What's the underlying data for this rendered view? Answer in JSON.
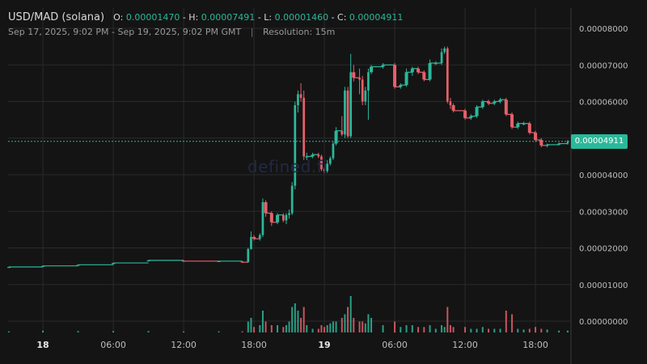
{
  "header": {
    "pair": "USD/MAD (solana)",
    "open_label": "O:",
    "open": "0.00001470",
    "high_label": "H:",
    "high": "0.00007491",
    "low_label": "L:",
    "low": "0.00001460",
    "close_label": "C:",
    "close": "0.00004911",
    "date_range": "Sep 17, 2025, 9:02 PM - Sep 19, 2025, 9:02 PM GMT",
    "separator": "|",
    "resolution": "Resolution: 15m"
  },
  "watermark": "defined.fi",
  "last_price_label": "0.00004911",
  "colors": {
    "up": "#2bb89a",
    "down": "#e5606b",
    "background": "#141414",
    "grid": "#2a2a2a"
  },
  "chart_data": {
    "type": "candlestick",
    "title": "USD/MAD (solana)",
    "yaxis": {
      "ticks": [
        8e-05,
        7e-05,
        6e-05,
        5e-05,
        4e-05,
        3e-05,
        2e-05,
        1e-05,
        0
      ],
      "tick_labels": [
        "0.00008000",
        "0.00007000",
        "0.00006000",
        "0.00005000",
        "0.00004000",
        "0.00003000",
        "0.00002000",
        "0.00001000",
        "0.00000000"
      ],
      "ylim": [
        0,
        8.5e-05
      ],
      "label_positions": "right"
    },
    "xaxis": {
      "xlim": [
        21.03,
        69.03
      ],
      "ticks": [
        24,
        30,
        36,
        42,
        48,
        54,
        60,
        66
      ],
      "tick_labels": [
        "18",
        "06:00",
        "12:00",
        "18:00",
        "19",
        "06:00",
        "12:00",
        "18:00"
      ],
      "bold_ticks": [
        "18",
        "19"
      ],
      "unit": "hours since Sep 17 00:00 GMT"
    },
    "grid": true,
    "last_price": 4.911e-05,
    "volume_scale_max": 10,
    "candles": [
      {
        "t": 21.1,
        "o": 1.47e-05,
        "h": 1.49e-05,
        "l": 1.46e-05,
        "c": 1.48e-05,
        "v": 0.3
      },
      {
        "t": 24.0,
        "o": 1.49e-05,
        "h": 1.51e-05,
        "l": 1.48e-05,
        "c": 1.51e-05,
        "v": 0.5
      },
      {
        "t": 27.0,
        "o": 1.52e-05,
        "h": 1.54e-05,
        "l": 1.51e-05,
        "c": 1.54e-05,
        "v": 0.4
      },
      {
        "t": 30.0,
        "o": 1.56e-05,
        "h": 1.59e-05,
        "l": 1.55e-05,
        "c": 1.59e-05,
        "v": 0.4
      },
      {
        "t": 33.0,
        "o": 1.64e-05,
        "h": 1.67e-05,
        "l": 1.63e-05,
        "c": 1.66e-05,
        "v": 0.4
      },
      {
        "t": 36.0,
        "o": 1.65e-05,
        "h": 1.66e-05,
        "l": 1.63e-05,
        "c": 1.64e-05,
        "v": 0.3
      },
      {
        "t": 39.0,
        "o": 1.63e-05,
        "h": 1.65e-05,
        "l": 1.62e-05,
        "c": 1.64e-05,
        "v": 0.3
      },
      {
        "t": 41.0,
        "o": 1.63e-05,
        "h": 1.64e-05,
        "l": 1.59e-05,
        "c": 1.61e-05,
        "v": 0.3
      },
      {
        "t": 41.5,
        "o": 1.61e-05,
        "h": 2e-05,
        "l": 1.6e-05,
        "c": 1.97e-05,
        "v": 3.0
      },
      {
        "t": 41.75,
        "o": 1.97e-05,
        "h": 2.45e-05,
        "l": 1.95e-05,
        "c": 2.3e-05,
        "v": 4.0
      },
      {
        "t": 42.0,
        "o": 2.3e-05,
        "h": 2.35e-05,
        "l": 2.2e-05,
        "c": 2.25e-05,
        "v": 1.5
      },
      {
        "t": 42.5,
        "o": 2.25e-05,
        "h": 2.4e-05,
        "l": 2.2e-05,
        "c": 2.35e-05,
        "v": 2.0
      },
      {
        "t": 42.75,
        "o": 2.35e-05,
        "h": 3.35e-05,
        "l": 2.3e-05,
        "c": 3.25e-05,
        "v": 6.0
      },
      {
        "t": 43.0,
        "o": 3.25e-05,
        "h": 3.3e-05,
        "l": 2.85e-05,
        "c": 2.95e-05,
        "v": 3.0
      },
      {
        "t": 43.5,
        "o": 2.95e-05,
        "h": 3e-05,
        "l": 2.6e-05,
        "c": 2.7e-05,
        "v": 2.0
      },
      {
        "t": 44.0,
        "o": 2.7e-05,
        "h": 2.95e-05,
        "l": 2.65e-05,
        "c": 2.9e-05,
        "v": 2.0
      },
      {
        "t": 44.5,
        "o": 2.9e-05,
        "h": 2.95e-05,
        "l": 2.7e-05,
        "c": 2.75e-05,
        "v": 1.5
      },
      {
        "t": 44.75,
        "o": 2.75e-05,
        "h": 2.95e-05,
        "l": 2.65e-05,
        "c": 2.9e-05,
        "v": 2.0
      },
      {
        "t": 45.0,
        "o": 2.9e-05,
        "h": 3.05e-05,
        "l": 2.8e-05,
        "c": 2.95e-05,
        "v": 3.0
      },
      {
        "t": 45.25,
        "o": 2.95e-05,
        "h": 3.8e-05,
        "l": 2.9e-05,
        "c": 3.7e-05,
        "v": 7.0
      },
      {
        "t": 45.5,
        "o": 3.7e-05,
        "h": 6e-05,
        "l": 3.6e-05,
        "c": 5.9e-05,
        "v": 8.0
      },
      {
        "t": 45.75,
        "o": 5.9e-05,
        "h": 6.3e-05,
        "l": 5.7e-05,
        "c": 6.2e-05,
        "v": 6.0
      },
      {
        "t": 46.0,
        "o": 6.2e-05,
        "h": 6.5e-05,
        "l": 6e-05,
        "c": 6.1e-05,
        "v": 4.0
      },
      {
        "t": 46.25,
        "o": 6.1e-05,
        "h": 6.3e-05,
        "l": 4.4e-05,
        "c": 4.5e-05,
        "v": 7.0
      },
      {
        "t": 46.5,
        "o": 4.5e-05,
        "h": 4.6e-05,
        "l": 4.4e-05,
        "c": 4.5e-05,
        "v": 2.0
      },
      {
        "t": 47.0,
        "o": 4.5e-05,
        "h": 4.6e-05,
        "l": 4.45e-05,
        "c": 4.55e-05,
        "v": 1.0
      },
      {
        "t": 47.5,
        "o": 4.55e-05,
        "h": 4.6e-05,
        "l": 4.45e-05,
        "c": 4.5e-05,
        "v": 1.0
      },
      {
        "t": 47.75,
        "o": 4.5e-05,
        "h": 4.55e-05,
        "l": 4.1e-05,
        "c": 4.15e-05,
        "v": 2.0
      },
      {
        "t": 48.0,
        "o": 4.15e-05,
        "h": 4.2e-05,
        "l": 4.05e-05,
        "c": 4.1e-05,
        "v": 1.5
      },
      {
        "t": 48.25,
        "o": 4.1e-05,
        "h": 4.4e-05,
        "l": 4.05e-05,
        "c": 4.3e-05,
        "v": 2.0
      },
      {
        "t": 48.5,
        "o": 4.3e-05,
        "h": 4.5e-05,
        "l": 4.25e-05,
        "c": 4.45e-05,
        "v": 2.5
      },
      {
        "t": 48.75,
        "o": 4.45e-05,
        "h": 4.9e-05,
        "l": 4.4e-05,
        "c": 4.85e-05,
        "v": 3.0
      },
      {
        "t": 49.0,
        "o": 4.85e-05,
        "h": 5.3e-05,
        "l": 4.8e-05,
        "c": 5.2e-05,
        "v": 3.0
      },
      {
        "t": 49.5,
        "o": 5.2e-05,
        "h": 5.6e-05,
        "l": 5.05e-05,
        "c": 5.1e-05,
        "v": 4.0
      },
      {
        "t": 49.75,
        "o": 5.1e-05,
        "h": 6.4e-05,
        "l": 5e-05,
        "c": 6.3e-05,
        "v": 5.0
      },
      {
        "t": 50.0,
        "o": 6.3e-05,
        "h": 6.4e-05,
        "l": 5e-05,
        "c": 5.05e-05,
        "v": 7.0
      },
      {
        "t": 50.25,
        "o": 5.05e-05,
        "h": 7.3e-05,
        "l": 5e-05,
        "c": 6.8e-05,
        "v": 10.0
      },
      {
        "t": 50.5,
        "o": 6.8e-05,
        "h": 7e-05,
        "l": 6.55e-05,
        "c": 6.65e-05,
        "v": 4.0
      },
      {
        "t": 51.0,
        "o": 6.65e-05,
        "h": 6.9e-05,
        "l": 6.2e-05,
        "c": 6.6e-05,
        "v": 3.0
      },
      {
        "t": 51.25,
        "o": 6.6e-05,
        "h": 6.7e-05,
        "l": 5.9e-05,
        "c": 6e-05,
        "v": 3.0
      },
      {
        "t": 51.5,
        "o": 6e-05,
        "h": 6.4e-05,
        "l": 5.9e-05,
        "c": 6.3e-05,
        "v": 2.5
      },
      {
        "t": 51.75,
        "o": 6.3e-05,
        "h": 6.9e-05,
        "l": 5.5e-05,
        "c": 6.8e-05,
        "v": 5.0
      },
      {
        "t": 52.0,
        "o": 6.8e-05,
        "h": 7e-05,
        "l": 6.75e-05,
        "c": 6.95e-05,
        "v": 4.0
      },
      {
        "t": 53.0,
        "o": 6.95e-05,
        "h": 7.05e-05,
        "l": 6.9e-05,
        "c": 7e-05,
        "v": 2.0
      },
      {
        "t": 54.0,
        "o": 7e-05,
        "h": 7.05e-05,
        "l": 6.35e-05,
        "c": 6.4e-05,
        "v": 3.0
      },
      {
        "t": 54.5,
        "o": 6.4e-05,
        "h": 6.5e-05,
        "l": 6.35e-05,
        "c": 6.45e-05,
        "v": 1.5
      },
      {
        "t": 55.0,
        "o": 6.45e-05,
        "h": 6.9e-05,
        "l": 6.4e-05,
        "c": 6.8e-05,
        "v": 2.0
      },
      {
        "t": 55.5,
        "o": 6.8e-05,
        "h": 6.95e-05,
        "l": 6.7e-05,
        "c": 6.9e-05,
        "v": 2.0
      },
      {
        "t": 56.0,
        "o": 6.9e-05,
        "h": 6.95e-05,
        "l": 6.75e-05,
        "c": 6.8e-05,
        "v": 1.5
      },
      {
        "t": 56.5,
        "o": 6.8e-05,
        "h": 6.85e-05,
        "l": 6.55e-05,
        "c": 6.6e-05,
        "v": 1.5
      },
      {
        "t": 57.0,
        "o": 6.6e-05,
        "h": 7.15e-05,
        "l": 6.55e-05,
        "c": 7.05e-05,
        "v": 2.0
      },
      {
        "t": 57.5,
        "o": 7.05e-05,
        "h": 7.1e-05,
        "l": 7e-05,
        "c": 7.05e-05,
        "v": 1.0
      },
      {
        "t": 58.0,
        "o": 7.05e-05,
        "h": 7.45e-05,
        "l": 7e-05,
        "c": 7.35e-05,
        "v": 2.0
      },
      {
        "t": 58.25,
        "o": 7.35e-05,
        "h": 7.5e-05,
        "l": 7.3e-05,
        "c": 7.45e-05,
        "v": 1.5
      },
      {
        "t": 58.5,
        "o": 7.45e-05,
        "h": 7.5e-05,
        "l": 5.95e-05,
        "c": 6e-05,
        "v": 7.0
      },
      {
        "t": 58.75,
        "o": 6e-05,
        "h": 6.1e-05,
        "l": 5.8e-05,
        "c": 5.9e-05,
        "v": 2.0
      },
      {
        "t": 59.0,
        "o": 5.9e-05,
        "h": 5.95e-05,
        "l": 5.7e-05,
        "c": 5.75e-05,
        "v": 1.5
      },
      {
        "t": 60.0,
        "o": 5.75e-05,
        "h": 5.8e-05,
        "l": 5.5e-05,
        "c": 5.55e-05,
        "v": 1.5
      },
      {
        "t": 60.5,
        "o": 5.55e-05,
        "h": 5.65e-05,
        "l": 5.5e-05,
        "c": 5.6e-05,
        "v": 1.0
      },
      {
        "t": 61.0,
        "o": 5.6e-05,
        "h": 5.9e-05,
        "l": 5.55e-05,
        "c": 5.85e-05,
        "v": 1.0
      },
      {
        "t": 61.5,
        "o": 5.85e-05,
        "h": 6.05e-05,
        "l": 5.8e-05,
        "c": 6e-05,
        "v": 1.5
      },
      {
        "t": 62.0,
        "o": 6e-05,
        "h": 6.05e-05,
        "l": 5.9e-05,
        "c": 5.95e-05,
        "v": 1.0
      },
      {
        "t": 62.5,
        "o": 5.95e-05,
        "h": 6.05e-05,
        "l": 5.9e-05,
        "c": 6e-05,
        "v": 1.0
      },
      {
        "t": 63.0,
        "o": 6e-05,
        "h": 6.1e-05,
        "l": 5.95e-05,
        "c": 6.05e-05,
        "v": 1.0
      },
      {
        "t": 63.5,
        "o": 6.05e-05,
        "h": 6.1e-05,
        "l": 5.6e-05,
        "c": 5.65e-05,
        "v": 6.0
      },
      {
        "t": 64.0,
        "o": 5.65e-05,
        "h": 5.7e-05,
        "l": 5.25e-05,
        "c": 5.3e-05,
        "v": 5.0
      },
      {
        "t": 64.5,
        "o": 5.3e-05,
        "h": 5.45e-05,
        "l": 5.25e-05,
        "c": 5.4e-05,
        "v": 1.0
      },
      {
        "t": 65.0,
        "o": 5.4e-05,
        "h": 5.45e-05,
        "l": 5.35e-05,
        "c": 5.4e-05,
        "v": 0.8
      },
      {
        "t": 65.5,
        "o": 5.4e-05,
        "h": 5.45e-05,
        "l": 5.1e-05,
        "c": 5.15e-05,
        "v": 1.0
      },
      {
        "t": 66.0,
        "o": 5.15e-05,
        "h": 5.2e-05,
        "l": 4.9e-05,
        "c": 4.95e-05,
        "v": 1.5
      },
      {
        "t": 66.5,
        "o": 4.95e-05,
        "h": 5e-05,
        "l": 4.75e-05,
        "c": 4.8e-05,
        "v": 1.0
      },
      {
        "t": 67.0,
        "o": 4.8e-05,
        "h": 4.85e-05,
        "l": 4.75e-05,
        "c": 4.82e-05,
        "v": 0.8
      },
      {
        "t": 68.0,
        "o": 4.82e-05,
        "h": 4.88e-05,
        "l": 4.8e-05,
        "c": 4.85e-05,
        "v": 0.5
      },
      {
        "t": 68.75,
        "o": 4.85e-05,
        "h": 4.95e-05,
        "l": 4.82e-05,
        "c": 4.911e-05,
        "v": 0.5
      }
    ]
  }
}
